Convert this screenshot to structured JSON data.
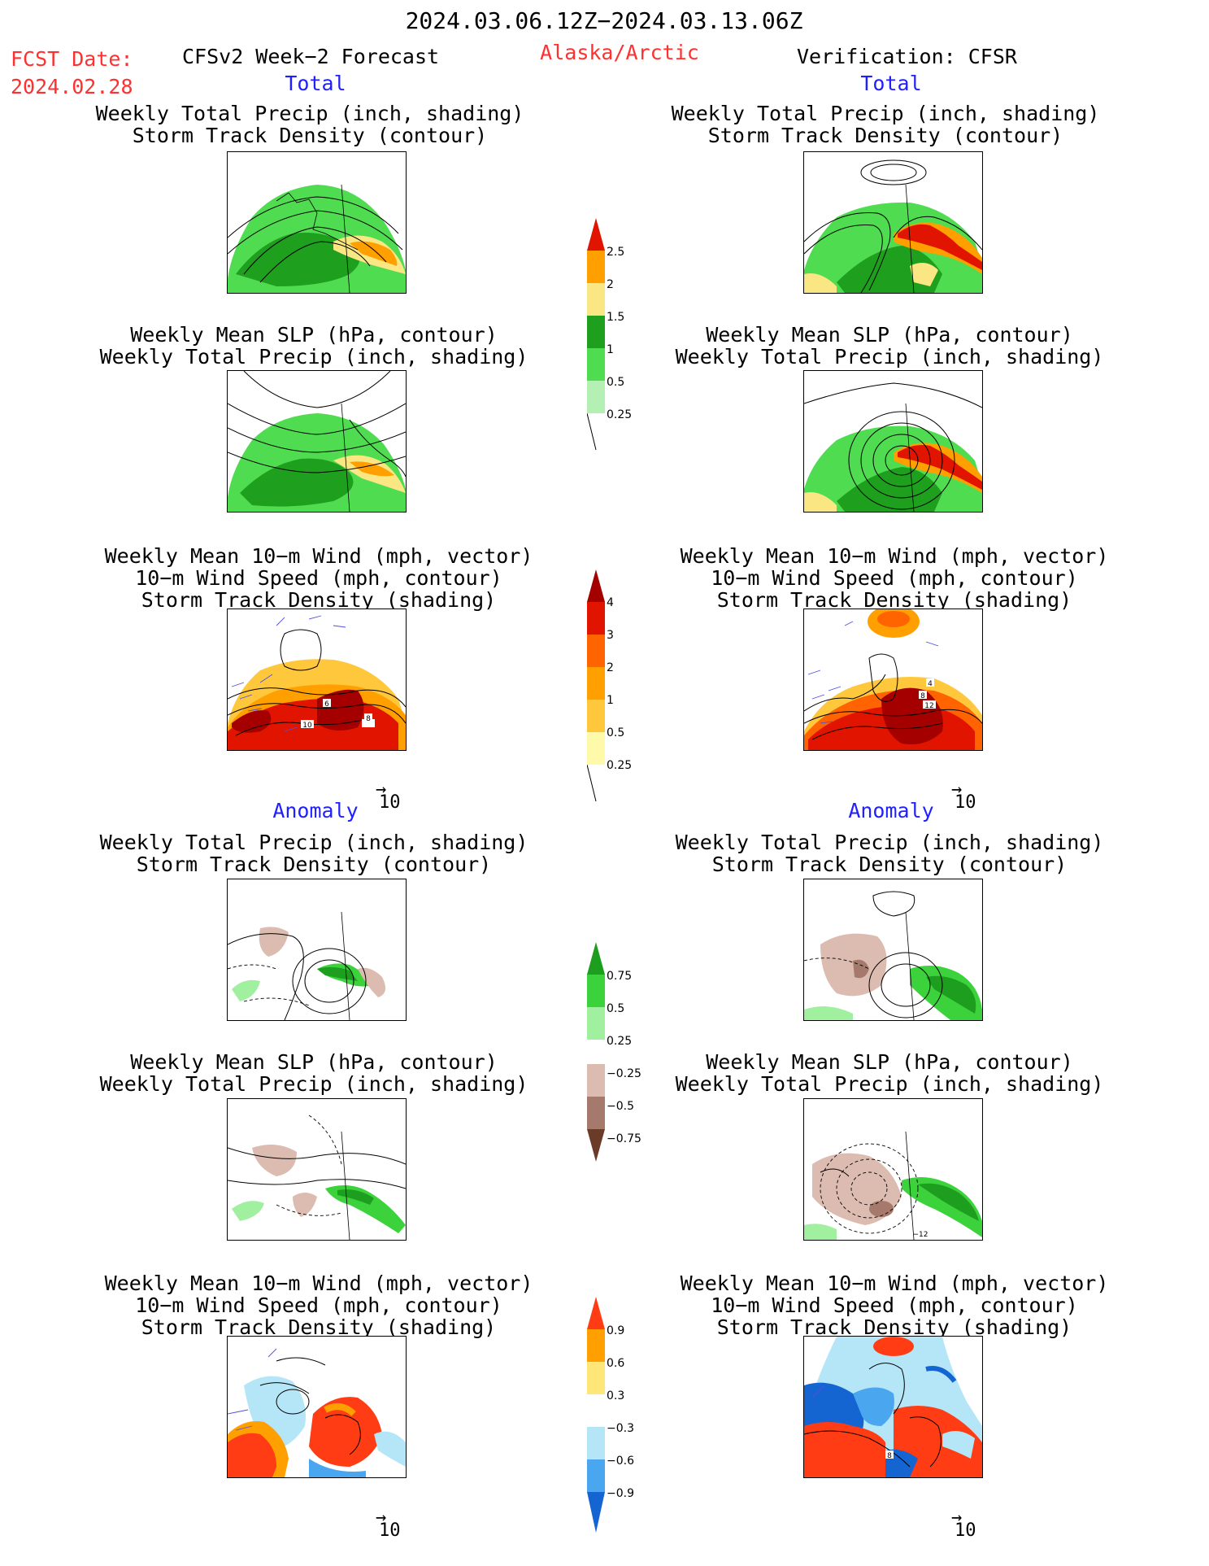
{
  "header": {
    "date_range": "2024.03.06.12Z−2024.03.13.06Z",
    "fcst_label": "FCST Date:",
    "fcst_date": "2024.02.28",
    "model": "CFSv2 Week−2 Forecast",
    "region": "Alaska/Arctic",
    "verification": "Verification: CFSR"
  },
  "sections": {
    "total_left": "Total",
    "total_right": "Total",
    "anomaly_left": "Anomaly",
    "anomaly_right": "Anomaly"
  },
  "titles": {
    "precip_track": [
      "Weekly Total Precip (inch, shading)",
      "Storm Track Density (contour)"
    ],
    "slp_precip": [
      "Weekly Mean SLP (hPa, contour)",
      "Weekly Total Precip (inch, shading)"
    ],
    "wind_track": [
      "Weekly Mean 10−m Wind (mph, vector)",
      "10−m Wind Speed (mph, contour)",
      "Storm Track Density (shading)"
    ]
  },
  "vector_ref": "10",
  "contour_labels": {
    "wind_fcst": [
      "6",
      "8",
      "10"
    ],
    "wind_obs": [
      "4",
      "8",
      "12"
    ],
    "slp_anom_obs": [
      "−12"
    ],
    "wind_anom_obs": [
      "8"
    ]
  },
  "colors": {
    "precip_fill": [
      "#b4f0b4",
      "#50dc50",
      "#1ea01e",
      "#fae682",
      "#ffa000",
      "#e11400"
    ],
    "track_fill": [
      "#fffaaa",
      "#ffc83c",
      "#ffa000",
      "#ff6400",
      "#e11400",
      "#a50000"
    ],
    "precip_anom_fill": [
      "#6b3b2a",
      "#a57a6c",
      "#dcbcb0",
      "#ffffff",
      "#a0f0a0",
      "#3cd23c",
      "#1e9e1e"
    ],
    "track_anom_fill": [
      "#1464d2",
      "#4ba6f0",
      "#b4e6f8",
      "#ffffff",
      "#ffe678",
      "#ffa000",
      "#ff3c14"
    ]
  },
  "chart_data": [
    {
      "type": "heatmap",
      "name": "Total precipitation colorbar",
      "tick_labels": [
        "0.25",
        "0.5",
        "1",
        "1.5",
        "2",
        "2.5"
      ],
      "values": [
        0.25,
        0.5,
        1,
        1.5,
        2,
        2.5
      ]
    },
    {
      "type": "heatmap",
      "name": "Total storm track density colorbar",
      "tick_labels": [
        "0.25",
        "0.5",
        "1",
        "2",
        "3",
        "4"
      ],
      "values": [
        0.25,
        0.5,
        1,
        2,
        3,
        4
      ]
    },
    {
      "type": "heatmap",
      "name": "Precipitation anomaly colorbar",
      "tick_labels": [
        "0.75",
        "0.5",
        "0.25",
        "−0.25",
        "−0.5",
        "−0.75"
      ],
      "values": [
        0.75,
        0.5,
        0.25,
        -0.25,
        -0.5,
        -0.75
      ]
    },
    {
      "type": "heatmap",
      "name": "Storm track density anomaly colorbar",
      "tick_labels": [
        "0.9",
        "0.6",
        "0.3",
        "−0.3",
        "−0.6",
        "−0.9"
      ],
      "values": [
        0.9,
        0.6,
        0.3,
        -0.3,
        -0.6,
        -0.9
      ]
    }
  ]
}
